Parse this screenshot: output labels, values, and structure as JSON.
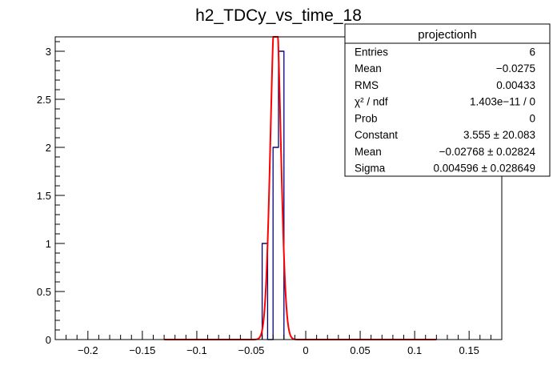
{
  "chart_data": {
    "type": "bar",
    "title": "h2_TDCy_vs_time_18",
    "xlabel": "",
    "ylabel": "",
    "xlim": [
      -0.23,
      0.18
    ],
    "ylim": [
      0,
      3.15
    ],
    "x_ticks": [
      -0.2,
      -0.15,
      -0.1,
      -0.05,
      0,
      0.05,
      0.1,
      0.15
    ],
    "x_tick_labels": [
      "−0.2",
      "−0.15",
      "−0.1",
      "−0.05",
      "0",
      "0.05",
      "0.1",
      "0.15"
    ],
    "y_ticks": [
      0,
      0.5,
      1,
      1.5,
      2,
      2.5,
      3
    ],
    "y_tick_labels": [
      "0",
      "0.5",
      "1",
      "1.5",
      "2",
      "2.5",
      "3"
    ],
    "histogram": {
      "color": "#000080",
      "bins": [
        {
          "low": -0.04,
          "high": -0.035,
          "count": 1
        },
        {
          "low": -0.035,
          "high": -0.03,
          "count": 0
        },
        {
          "low": -0.03,
          "high": -0.025,
          "count": 2
        },
        {
          "low": -0.025,
          "high": -0.02,
          "count": 3
        }
      ]
    },
    "fit": {
      "type": "gaussian",
      "color": "#ff0000",
      "constant": 3.555,
      "mean": -0.02768,
      "sigma": 0.004596,
      "range": [
        -0.13,
        0.12
      ]
    },
    "stats_box": {
      "title": "projectionh",
      "rows": [
        {
          "label": "Entries",
          "value": "6"
        },
        {
          "label": "Mean",
          "value": "−0.0275"
        },
        {
          "label": "RMS",
          "value": "0.00433"
        },
        {
          "label": "χ² / ndf",
          "value": "1.403e−11 / 0"
        },
        {
          "label": "Prob",
          "value": "0"
        },
        {
          "label": "Constant",
          "value": "3.555 ± 20.083"
        },
        {
          "label": "Mean",
          "value": "−0.02768 ± 0.02824"
        },
        {
          "label": "Sigma",
          "value": "0.004596 ± 0.028649"
        }
      ]
    }
  }
}
